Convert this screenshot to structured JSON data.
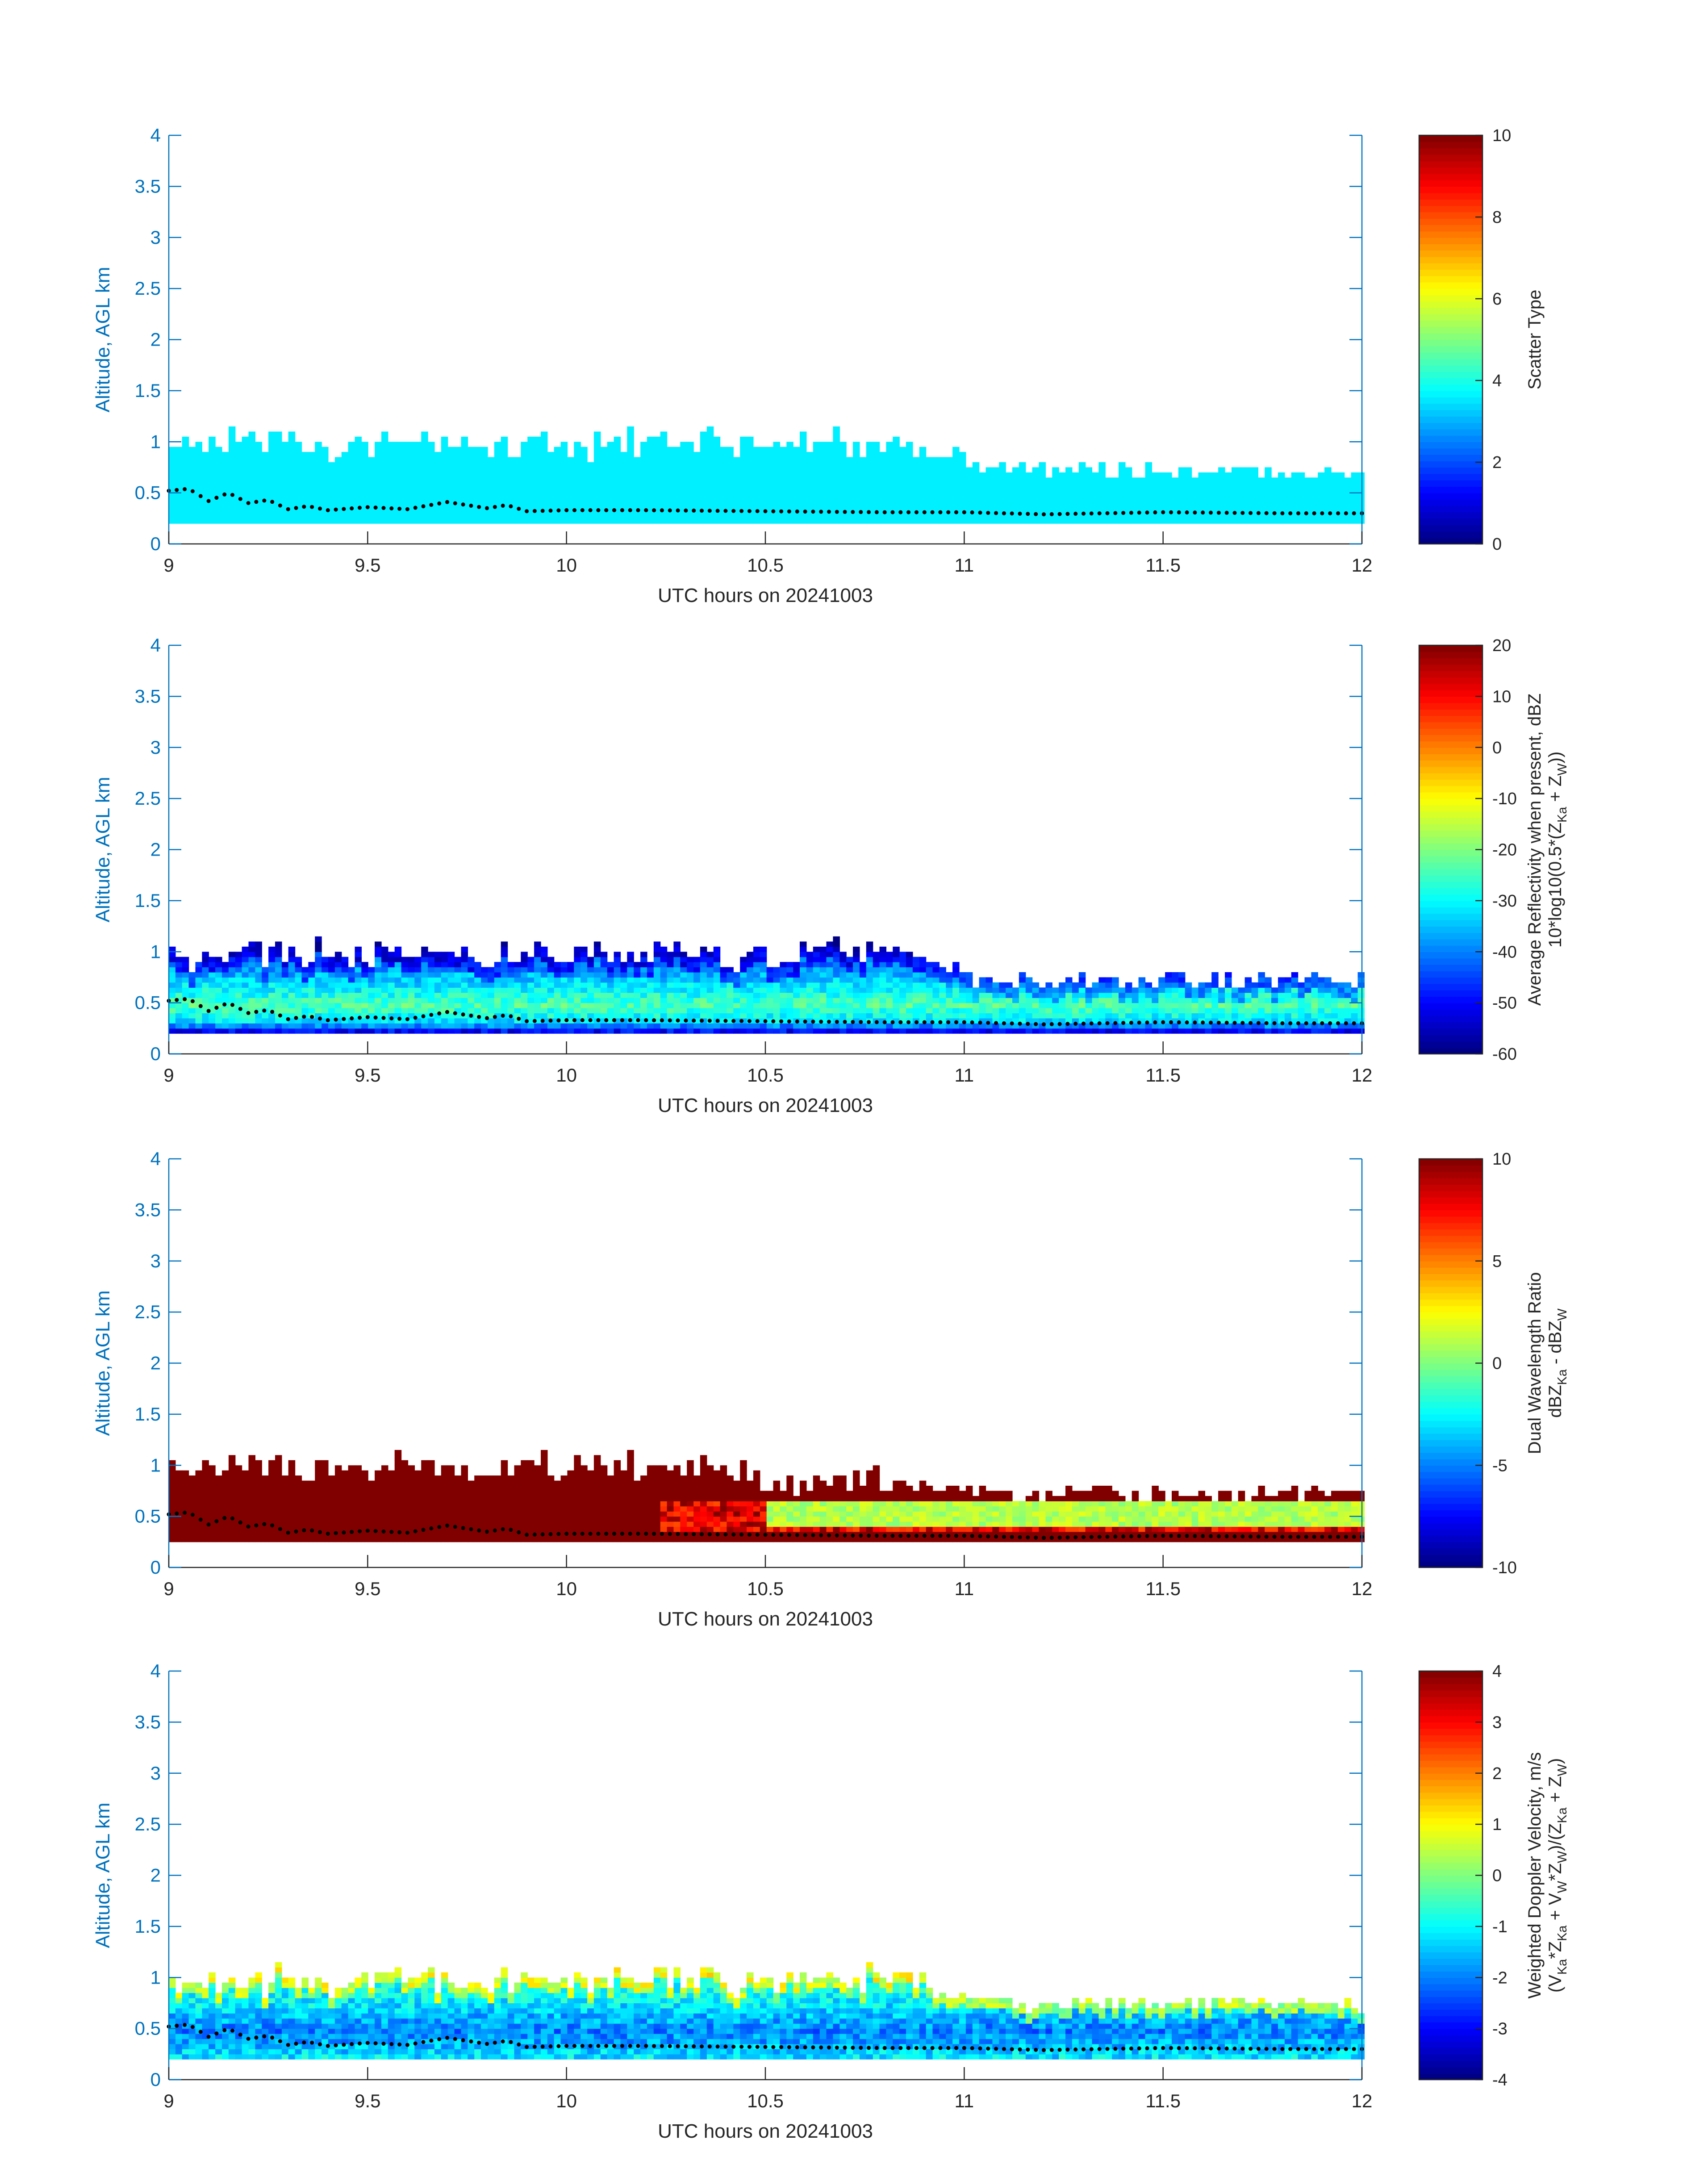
{
  "page": {
    "background": "#ffffff"
  },
  "colors": {
    "axis_blue": "#0072bd",
    "text_dark": "#262626",
    "profile_marker": "#000000",
    "colormap": "jet"
  },
  "chart_data": [
    {
      "type": "heatmap",
      "name": "scatter-type",
      "xlabel": "UTC hours on 20241003",
      "ylabel": "Altitude, AGL km",
      "xlim": [
        9,
        12
      ],
      "ylim": [
        0,
        4
      ],
      "xticks": [
        "9",
        "9.5",
        "10",
        "10.5",
        "11",
        "11.5",
        "12"
      ],
      "yticks": [
        "0",
        "0.5",
        "1",
        "1.5",
        "2",
        "2.5",
        "3",
        "3.5",
        "4"
      ],
      "colorbar": {
        "label_lines": [
          "Scatter Type"
        ],
        "clim": [
          0,
          10
        ],
        "ticks": [
          "0",
          "2",
          "4",
          "6",
          "8",
          "10"
        ]
      },
      "field": {
        "mode": "scatter",
        "value": 3.6,
        "base_km": 0.2,
        "top_segments": [
          {
            "x_end": 11.0,
            "top_km": 0.85
          },
          {
            "x_end": 11.5,
            "top_km": 0.72
          },
          {
            "x_end": 12.0,
            "top_km": 0.67
          }
        ]
      }
    },
    {
      "type": "heatmap",
      "name": "reflectivity",
      "xlabel": "UTC hours on 20241003",
      "ylabel": "Altitude, AGL km",
      "xlim": [
        9,
        12
      ],
      "ylim": [
        0,
        4
      ],
      "xticks": [
        "9",
        "9.5",
        "10",
        "10.5",
        "11",
        "11.5",
        "12"
      ],
      "yticks": [
        "0",
        "0.5",
        "1",
        "1.5",
        "2",
        "2.5",
        "3",
        "3.5",
        "4"
      ],
      "colorbar": {
        "label_lines": [
          "Average Reflectivity when present, dBZ",
          "10*log10(0.5*(Z_Ka + Z_W))"
        ],
        "clim": [
          -60,
          20
        ],
        "ticks": [
          "-60",
          "-50",
          "-40",
          "-30",
          "-20",
          "-10",
          "0",
          "10",
          "20"
        ]
      },
      "field": {
        "mode": "reflectivity",
        "base_km": 0.2,
        "profile": [
          {
            "z_km": 0.2,
            "value": -50
          },
          {
            "z_km": 0.28,
            "value": -33
          },
          {
            "z_km": 0.45,
            "value": -24
          },
          {
            "z_km": 0.65,
            "value": -32
          },
          {
            "z_km": 0.85,
            "value": -40
          },
          {
            "z_km": 1.1,
            "value": -47
          }
        ],
        "top_segments": [
          {
            "x_end": 11.0,
            "top_km": 0.85
          },
          {
            "x_end": 12.0,
            "top_km": 0.7
          }
        ]
      }
    },
    {
      "type": "heatmap",
      "name": "dual-wavelength-ratio",
      "xlabel": "UTC hours on 20241003",
      "ylabel": "Altitude, AGL km",
      "xlim": [
        9,
        12
      ],
      "ylim": [
        0,
        4
      ],
      "xticks": [
        "9",
        "9.5",
        "10",
        "10.5",
        "11",
        "11.5",
        "12"
      ],
      "yticks": [
        "0",
        "0.5",
        "1",
        "1.5",
        "2",
        "2.5",
        "3",
        "3.5",
        "4"
      ],
      "colorbar": {
        "label_lines": [
          "Dual Wavelength Ratio",
          "dBZ_Ka - dBZ_W"
        ],
        "clim": [
          -10,
          10
        ],
        "ticks": [
          "-10",
          "-5",
          "0",
          "5",
          "10"
        ]
      },
      "field": {
        "mode": "dwr",
        "base_km": 0.25,
        "saturated_value": 10,
        "layer_value": 1,
        "layer_start_x": 10.23,
        "layer_bottom_km": 0.33,
        "layer_top_km": 0.63,
        "top_segments": [
          {
            "x_end": 10.45,
            "top_km": 0.85
          },
          {
            "x_end": 12.0,
            "top_km": 0.7
          }
        ]
      }
    },
    {
      "type": "heatmap",
      "name": "doppler-velocity",
      "xlabel": "UTC hours on 20241003",
      "ylabel": "Altitude, AGL km",
      "xlim": [
        9,
        12
      ],
      "ylim": [
        0,
        4
      ],
      "xticks": [
        "9",
        "9.5",
        "10",
        "10.5",
        "11",
        "11.5",
        "12"
      ],
      "yticks": [
        "0",
        "0.5",
        "1",
        "1.5",
        "2",
        "2.5",
        "3",
        "3.5",
        "4"
      ],
      "colorbar": {
        "label_lines": [
          "Weighted Doppler Velocity, m/s",
          "(V_Ka*Z_Ka + V_W*Z_W)/(Z_Ka + Z_W)"
        ],
        "clim": [
          -4,
          4
        ],
        "ticks": [
          "-4",
          "-3",
          "-2",
          "-1",
          "0",
          "1",
          "2",
          "3",
          "4"
        ]
      },
      "field": {
        "mode": "doppler",
        "base_km": 0.2,
        "profile": [
          {
            "z_km": 0.2,
            "value": -1.2
          },
          {
            "z_km": 0.45,
            "value": -2.0
          },
          {
            "z_km": 0.7,
            "value": -1.2
          },
          {
            "z_km": 1.0,
            "value": -0.6
          }
        ],
        "top_segments": [
          {
            "x_end": 11.0,
            "top_km": 0.85
          },
          {
            "x_end": 12.0,
            "top_km": 0.72
          }
        ]
      }
    }
  ],
  "cloud_base_profile": {
    "description": "black dotted line (estimated from plot)",
    "points": [
      {
        "x": 9.0,
        "y": 0.52
      },
      {
        "x": 9.05,
        "y": 0.54
      },
      {
        "x": 9.1,
        "y": 0.42
      },
      {
        "x": 9.15,
        "y": 0.5
      },
      {
        "x": 9.2,
        "y": 0.4
      },
      {
        "x": 9.25,
        "y": 0.43
      },
      {
        "x": 9.3,
        "y": 0.34
      },
      {
        "x": 9.35,
        "y": 0.37
      },
      {
        "x": 9.4,
        "y": 0.33
      },
      {
        "x": 9.5,
        "y": 0.36
      },
      {
        "x": 9.6,
        "y": 0.34
      },
      {
        "x": 9.7,
        "y": 0.41
      },
      {
        "x": 9.8,
        "y": 0.35
      },
      {
        "x": 9.85,
        "y": 0.38
      },
      {
        "x": 9.9,
        "y": 0.32
      },
      {
        "x": 10.0,
        "y": 0.33
      },
      {
        "x": 10.2,
        "y": 0.33
      },
      {
        "x": 10.5,
        "y": 0.32
      },
      {
        "x": 10.8,
        "y": 0.31
      },
      {
        "x": 11.0,
        "y": 0.31
      },
      {
        "x": 11.2,
        "y": 0.29
      },
      {
        "x": 11.5,
        "y": 0.31
      },
      {
        "x": 11.8,
        "y": 0.3
      },
      {
        "x": 12.0,
        "y": 0.3
      }
    ]
  }
}
